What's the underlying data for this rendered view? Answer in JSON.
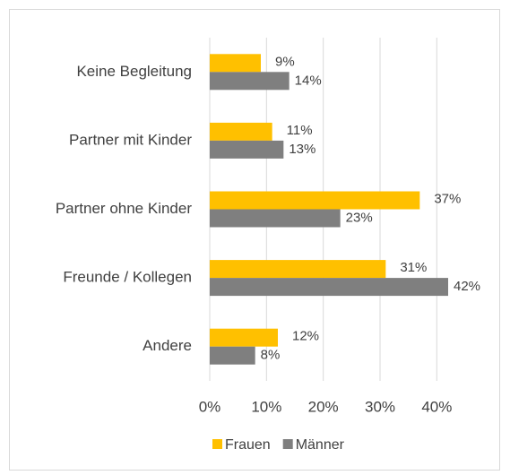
{
  "chart_data": {
    "type": "bar",
    "orientation": "horizontal",
    "categories": [
      "Keine Begleitung",
      "Partner mit Kinder",
      "Partner ohne Kinder",
      "Freunde / Kollegen",
      "Andere"
    ],
    "series": [
      {
        "name": "Frauen",
        "color": "#FFC000",
        "values": [
          9,
          11,
          37,
          31,
          12
        ],
        "value_labels": [
          "9%",
          "11%",
          "37%",
          "31%",
          "12%"
        ]
      },
      {
        "name": "Männer",
        "color": "#7F7F7F",
        "values": [
          14,
          13,
          23,
          42,
          8
        ],
        "value_labels": [
          "14%",
          "13%",
          "23%",
          "42%",
          "8%"
        ]
      }
    ],
    "xlim": [
      0,
      45
    ],
    "xticks": [
      {
        "value": 0,
        "label": "0%"
      },
      {
        "value": 10,
        "label": "10%"
      },
      {
        "value": 20,
        "label": "20%"
      },
      {
        "value": 30,
        "label": "30%"
      },
      {
        "value": 40,
        "label": "40%"
      }
    ],
    "grid": true,
    "legend": "bottom"
  }
}
